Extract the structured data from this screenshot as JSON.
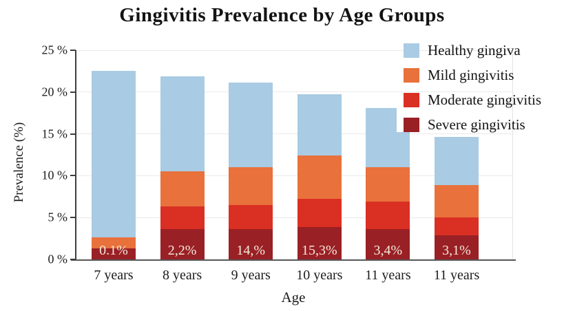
{
  "chart_data": {
    "type": "bar",
    "subtype": "stacked",
    "title": "Gingivitis Prevalence by Age Groups",
    "xlabel": "Age",
    "ylabel": "Prevalence (%)",
    "ylim": [
      0,
      25
    ],
    "grid": "horizontal",
    "legend_position": "top-right",
    "categories": [
      "7 years",
      "8 years",
      "9 years",
      "10 years",
      "11 years",
      "11 years"
    ],
    "y_ticks": [
      {
        "value": 0,
        "label": "0 %"
      },
      {
        "value": 5,
        "label": "5 %"
      },
      {
        "value": 10,
        "label": "10 %"
      },
      {
        "value": 15,
        "label": "15 %"
      },
      {
        "value": 20,
        "label": "20 %"
      },
      {
        "value": 25,
        "label": "25 %"
      }
    ],
    "series": [
      {
        "name": "Severe gingivitis",
        "color": "#992025",
        "values": [
          1.3,
          3.6,
          3.6,
          3.9,
          3.6,
          2.9
        ]
      },
      {
        "name": "Moderate gingivitis",
        "color": "#da2f23",
        "values": [
          0.0,
          2.7,
          2.9,
          3.3,
          3.3,
          2.1
        ]
      },
      {
        "name": "Mild gingivitis",
        "color": "#e8713c",
        "values": [
          1.3,
          4.2,
          4.5,
          5.2,
          4.1,
          3.9
        ]
      },
      {
        "name": "Healthy gingiva",
        "color": "#a9cbe3",
        "values": [
          19.9,
          11.4,
          10.1,
          7.3,
          7.1,
          5.7
        ]
      }
    ],
    "bar_totals": [
      22.5,
      21.9,
      21.1,
      19.7,
      18.1,
      14.6
    ],
    "bar_labels": [
      "0.1%",
      "2,2%",
      "14,%",
      "15,3%",
      "3,4%",
      "3,1%"
    ],
    "bar_label_color": "#f4e9dc",
    "legend": [
      "Healthy gingiva",
      "Mild gingivitis",
      "Moderate gingivitis",
      "Severe gingivitis"
    ],
    "notch": {
      "category_index": 4,
      "side": "right",
      "width_fraction": 0.3,
      "from_value": 18.1,
      "to_value": 15.2
    },
    "axis_color": "#3d3d3d",
    "gridline_color": "#e9e9e9",
    "background_color": "#ffffff"
  }
}
